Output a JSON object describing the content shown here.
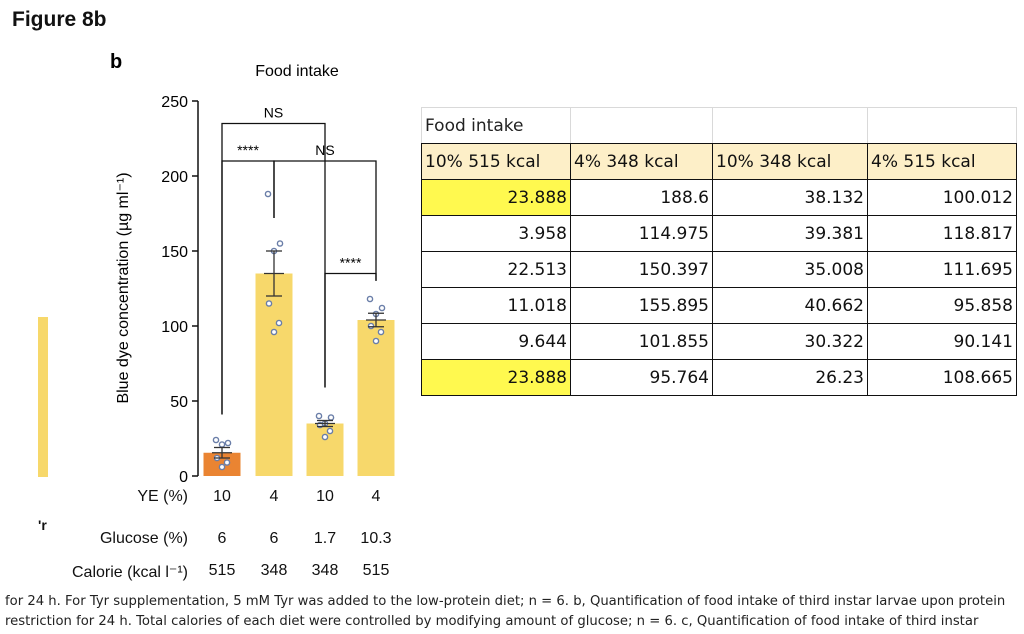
{
  "figure_title": "Figure 8b",
  "panel_letter": "b",
  "colors": {
    "bar_light": "#f7d86b",
    "bar_dark": "#ea8432",
    "header_fill": "#fdefc8",
    "highlight": "#fff94f"
  },
  "chart_data": {
    "type": "bar",
    "title": "Food intake",
    "ylabel": "Blue dye concentration (µg ml⁻¹)",
    "ylim": [
      0,
      250
    ],
    "yticks": [
      "0",
      "50",
      "100",
      "150",
      "200",
      "250"
    ],
    "categories": [
      "10% 515 kcal",
      "4% 348 kcal",
      "10% 348 kcal",
      "4% 515 kcal"
    ],
    "values": [
      15.5,
      135,
      35,
      104
    ],
    "errors": [
      3.5,
      15,
      2,
      4.5
    ],
    "bar_colors": [
      "#ea8432",
      "#f7d86b",
      "#f7d86b",
      "#f7d86b"
    ],
    "points": [
      [
        24,
        22,
        21,
        12,
        9,
        6
      ],
      [
        188,
        155,
        150,
        115,
        102,
        96
      ],
      [
        40,
        39,
        35,
        34,
        30,
        26
      ],
      [
        118,
        112,
        108,
        100,
        96,
        90
      ]
    ],
    "significance": [
      {
        "label": "NS",
        "from": 0,
        "to": 2,
        "level": 235
      },
      {
        "label": "****",
        "from": 0,
        "to": 1,
        "level": 210
      },
      {
        "label": "NS",
        "from": 1,
        "to": 3,
        "level": 210
      },
      {
        "label": "****",
        "from": 2,
        "to": 3,
        "level": 135
      }
    ],
    "x_rows": [
      {
        "label": "YE (%)",
        "values": [
          "10",
          "4",
          "10",
          "4"
        ]
      },
      {
        "label": "Glucose (%)",
        "values": [
          "6",
          "6",
          "1.7",
          "10.3"
        ]
      },
      {
        "label": "Calorie (kcal l⁻¹)",
        "values": [
          "515",
          "348",
          "348",
          "515"
        ]
      }
    ]
  },
  "table": {
    "title": "Food intake",
    "headers": [
      "10% 515 kcal",
      "4% 348 kcal",
      "10% 348 kcal",
      "4% 515 kcal"
    ],
    "rows": [
      [
        "23.888",
        "188.6",
        "38.132",
        "100.012"
      ],
      [
        "3.958",
        "114.975",
        "39.381",
        "118.817"
      ],
      [
        "22.513",
        "150.397",
        "35.008",
        "111.695"
      ],
      [
        "11.018",
        "155.895",
        "40.662",
        "95.858"
      ],
      [
        "9.644",
        "101.855",
        "30.322",
        "90.141"
      ],
      [
        "23.888",
        "95.764",
        "26.23",
        "108.665"
      ]
    ]
  },
  "side_fragment": "'r",
  "caption": "for 24 h. For Tyr supplementation, 5 mM Tyr was added to the low-protein diet; n = 6. b, Quantification of food intake of third instar larvae upon protein restriction for 24 h. Total calories of each diet were controlled by modifying amount of glucose; n = 6. c, Quantification of food intake of third instar"
}
